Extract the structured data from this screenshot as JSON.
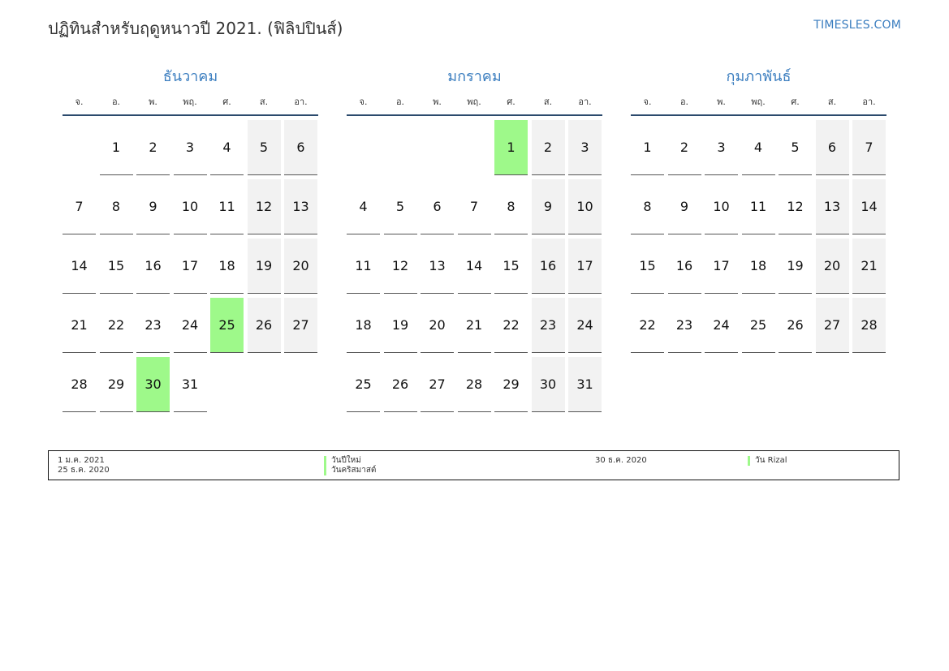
{
  "header": {
    "title": "ปฏิทินสำหรับฤดูหนาวปี 2021. (ฟิลิปปินส์)",
    "brand": "TIMESLES.COM"
  },
  "colors": {
    "accent": "#3a7dbf",
    "holiday": "#9ef98a",
    "weekend": "#f2f2f2",
    "rule": "#2b4a6d"
  },
  "weekdays": [
    "จ.",
    "อ.",
    "พ.",
    "พฤ.",
    "ศ.",
    "ส.",
    "อา."
  ],
  "months": [
    {
      "name": "ธันวาคม",
      "offset": 1,
      "days": 31,
      "holidays": [
        25,
        30
      ]
    },
    {
      "name": "มกราคม",
      "offset": 4,
      "days": 31,
      "holidays": [
        1
      ]
    },
    {
      "name": "กุมภาพันธ์",
      "offset": 0,
      "days": 28,
      "holidays": []
    }
  ],
  "legend": [
    {
      "date": "1 ม.ค. 2021",
      "name": "วันปีใหม่"
    },
    {
      "date": "25 ธ.ค. 2020",
      "name": "วันคริสมาสต์"
    },
    {
      "date": "30 ธ.ค. 2020",
      "name": "วัน Rizal"
    }
  ]
}
